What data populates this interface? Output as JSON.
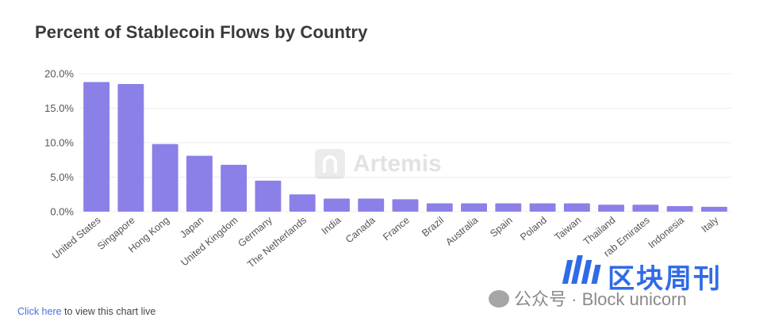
{
  "chart_data": {
    "type": "bar",
    "title": "Percent of Stablecoin Flows by Country",
    "xlabel": "",
    "ylabel": "",
    "ylim": [
      0,
      20
    ],
    "yticks": [
      0,
      5,
      10,
      15,
      20
    ],
    "ytick_labels": [
      "0.0%",
      "5.0%",
      "10.0%",
      "15.0%",
      "20.0%"
    ],
    "grid": true,
    "legend": "none",
    "bar_color": "#8b80e8",
    "categories": [
      "United States",
      "Singapore",
      "Hong Kong",
      "Japan",
      "United Kingdom",
      "Germany",
      "The Netherlands",
      "India",
      "Canada",
      "France",
      "Brazil",
      "Australia",
      "Spain",
      "Poland",
      "Taiwan",
      "Thailand",
      "United Arab Emirates",
      "Indonesia",
      "Italy"
    ],
    "category_labels": [
      "United States",
      "Singapore",
      "Hong Kong",
      "Japan",
      "United Kingdom",
      "Germany",
      "The Netherlands",
      "India",
      "Canada",
      "France",
      "Brazil",
      "Australia",
      "Spain",
      "Poland",
      "Taiwan",
      "Thailand",
      "rab Emirates",
      "Indonesia",
      "Italy"
    ],
    "values": [
      18.8,
      18.5,
      9.8,
      8.1,
      6.8,
      4.5,
      2.5,
      1.9,
      1.9,
      1.8,
      1.2,
      1.2,
      1.2,
      1.2,
      1.2,
      1.0,
      1.0,
      0.8,
      0.7
    ]
  },
  "footer": {
    "link_text": "Click here",
    "rest_text": " to view this chart live"
  },
  "watermarks": {
    "artemis": "Artemis",
    "brand_cn": "区块周刊",
    "account_prefix": "公众号 ·",
    "account_name": "Block unicorn"
  }
}
